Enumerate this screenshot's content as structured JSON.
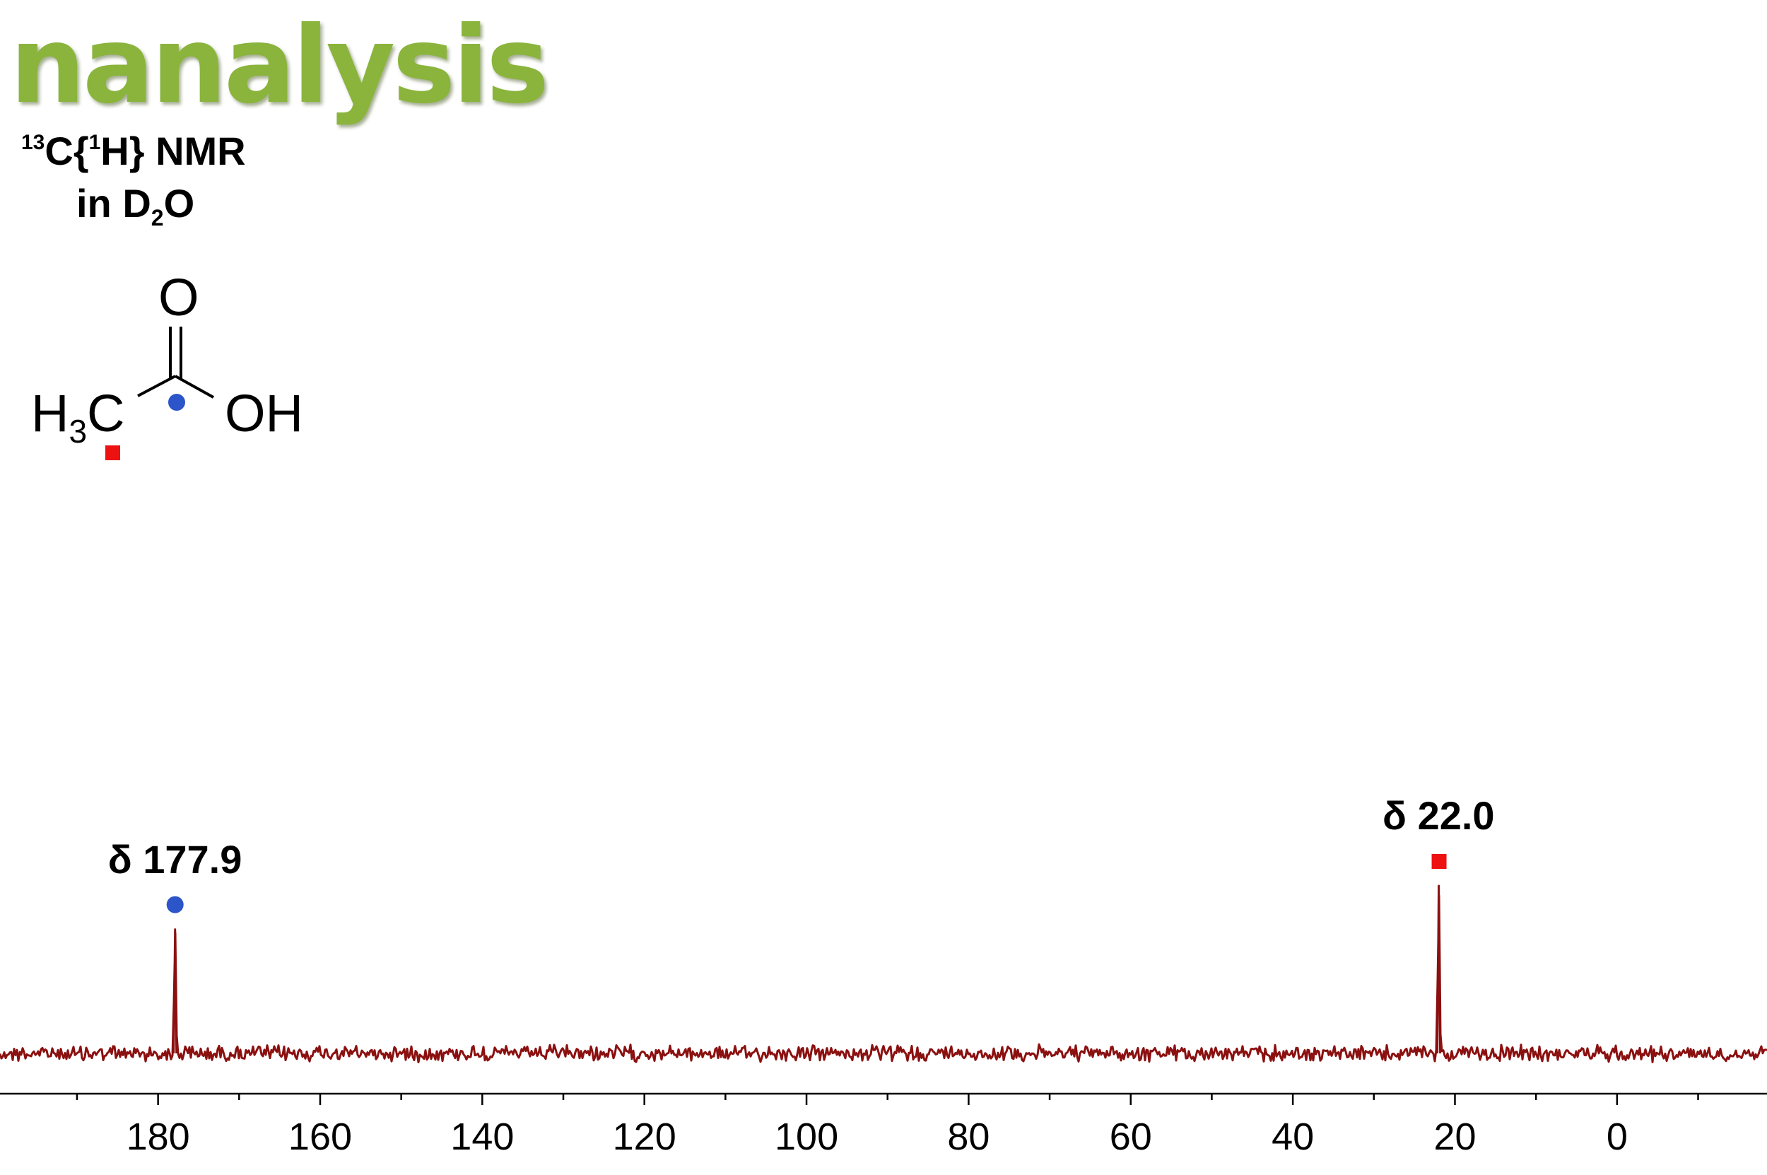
{
  "brand": {
    "name": "nanalysis",
    "color": "#8ab43c"
  },
  "experiment": {
    "nucleus_mass": "13",
    "nucleus": "C{",
    "decoupled_mass": "1",
    "decoupled": "H} NMR",
    "solvent_prefix": "in D",
    "solvent_sub": "2",
    "solvent_suffix": "O"
  },
  "molecule": {
    "carbonyl_o": "O",
    "methyl_h": "H",
    "methyl_sub": "3",
    "methyl_c": "C",
    "hydroxyl": "OH",
    "markers": [
      {
        "shape": "circle",
        "color": "#2b55c8",
        "atom": "carbonyl carbon"
      },
      {
        "shape": "square",
        "color": "#ee1111",
        "atom": "methyl carbon"
      }
    ]
  },
  "chart_data": {
    "type": "line",
    "title": "",
    "xlabel": "",
    "ylabel": "",
    "x_axis_reversed": true,
    "xlim": [
      199.5,
      -18.5
    ],
    "x_ticks": [
      180,
      160,
      140,
      120,
      100,
      80,
      60,
      40,
      20,
      0
    ],
    "x_tick_labels": [
      "180",
      "160",
      "140",
      "120",
      "100",
      "80",
      "60",
      "40",
      "20",
      "0"
    ],
    "x_minor_step": 10,
    "grid": false,
    "line_color": "#8b1010",
    "peaks": [
      {
        "shift": 177.9,
        "label": "δ 177.9",
        "relative_height": 0.74,
        "marker": "circle",
        "marker_color": "#2b55c8"
      },
      {
        "shift": 22.0,
        "label": "δ 22.0",
        "relative_height": 1.0,
        "marker": "square",
        "marker_color": "#ee1111"
      }
    ]
  }
}
